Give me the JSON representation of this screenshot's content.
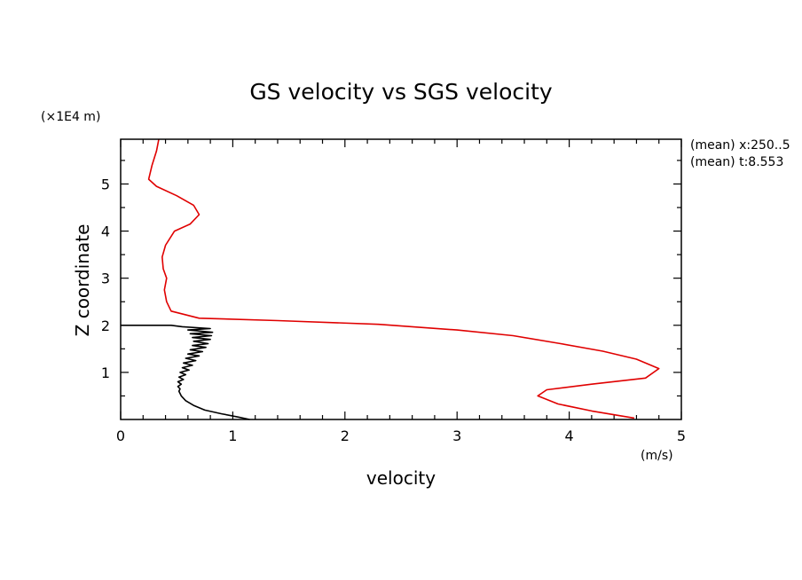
{
  "chart_data": {
    "type": "line",
    "title": "GS velocity vs SGS velocity",
    "xlabel": "velocity",
    "xunit": "(m/s)",
    "ylabel": "Z coordinate",
    "yunit": "(×1E4 m)",
    "xlim": [
      0,
      5
    ],
    "ylim": [
      0,
      5.95
    ],
    "xticks": [
      "0",
      "1",
      "2",
      "3",
      "4",
      "5"
    ],
    "yticks": [
      "1",
      "2",
      "3",
      "4",
      "5"
    ],
    "grid": false,
    "annotations": [
      "(mean) x:250..5",
      "(mean) t:8.553"
    ],
    "series": [
      {
        "color": "#e00000",
        "points": [
          [
            0.34,
            5.95
          ],
          [
            0.32,
            5.7
          ],
          [
            0.28,
            5.4
          ],
          [
            0.25,
            5.1
          ],
          [
            0.32,
            4.95
          ],
          [
            0.5,
            4.75
          ],
          [
            0.65,
            4.55
          ],
          [
            0.7,
            4.35
          ],
          [
            0.62,
            4.15
          ],
          [
            0.48,
            4.0
          ],
          [
            0.4,
            3.7
          ],
          [
            0.37,
            3.45
          ],
          [
            0.38,
            3.2
          ],
          [
            0.41,
            3.0
          ],
          [
            0.39,
            2.75
          ],
          [
            0.41,
            2.5
          ],
          [
            0.45,
            2.3
          ],
          [
            0.7,
            2.15
          ],
          [
            1.4,
            2.1
          ],
          [
            2.3,
            2.02
          ],
          [
            3.0,
            1.9
          ],
          [
            3.5,
            1.78
          ],
          [
            3.9,
            1.62
          ],
          [
            4.3,
            1.45
          ],
          [
            4.6,
            1.28
          ],
          [
            4.8,
            1.08
          ],
          [
            4.68,
            0.88
          ],
          [
            4.2,
            0.75
          ],
          [
            3.8,
            0.63
          ],
          [
            3.72,
            0.5
          ],
          [
            3.9,
            0.33
          ],
          [
            4.2,
            0.18
          ],
          [
            4.58,
            0.03
          ]
        ]
      },
      {
        "color": "#000000",
        "points": [
          [
            0.0,
            2.0
          ],
          [
            0.45,
            2.0
          ],
          [
            0.55,
            1.97
          ],
          [
            0.8,
            1.93
          ],
          [
            0.6,
            1.9
          ],
          [
            0.82,
            1.85
          ],
          [
            0.62,
            1.82
          ],
          [
            0.81,
            1.78
          ],
          [
            0.64,
            1.74
          ],
          [
            0.8,
            1.7
          ],
          [
            0.65,
            1.66
          ],
          [
            0.78,
            1.61
          ],
          [
            0.64,
            1.57
          ],
          [
            0.76,
            1.53
          ],
          [
            0.62,
            1.48
          ],
          [
            0.73,
            1.44
          ],
          [
            0.6,
            1.39
          ],
          [
            0.7,
            1.35
          ],
          [
            0.58,
            1.3
          ],
          [
            0.67,
            1.25
          ],
          [
            0.56,
            1.2
          ],
          [
            0.64,
            1.15
          ],
          [
            0.55,
            1.1
          ],
          [
            0.61,
            1.05
          ],
          [
            0.53,
            1.0
          ],
          [
            0.58,
            0.95
          ],
          [
            0.52,
            0.9
          ],
          [
            0.56,
            0.85
          ],
          [
            0.51,
            0.8
          ],
          [
            0.54,
            0.75
          ],
          [
            0.51,
            0.7
          ],
          [
            0.53,
            0.65
          ],
          [
            0.52,
            0.6
          ],
          [
            0.54,
            0.5
          ],
          [
            0.58,
            0.4
          ],
          [
            0.65,
            0.3
          ],
          [
            0.75,
            0.2
          ],
          [
            0.9,
            0.12
          ],
          [
            1.05,
            0.05
          ],
          [
            1.15,
            0.0
          ]
        ]
      }
    ]
  }
}
